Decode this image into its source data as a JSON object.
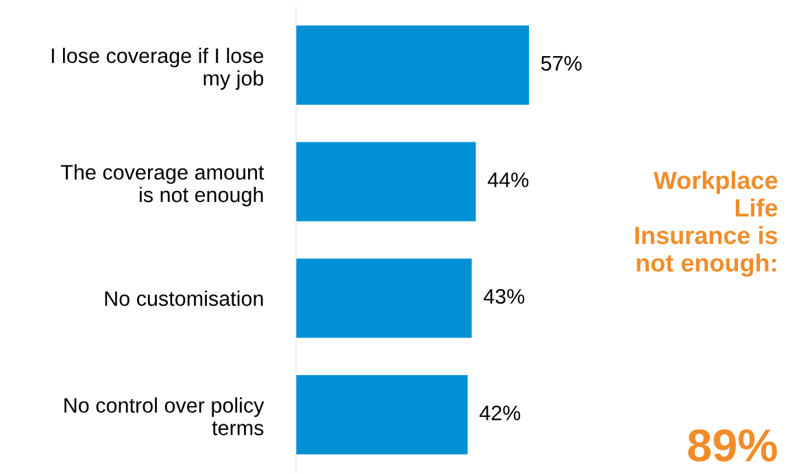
{
  "chart_data": {
    "type": "bar",
    "orientation": "horizontal",
    "categories": [
      "I lose coverage if I lose\nmy job",
      "The coverage amount\nis not enough",
      "No customisation",
      "No control over policy\nterms"
    ],
    "values": [
      57,
      44,
      43,
      42
    ],
    "value_labels": [
      "57%",
      "44%",
      "43%",
      "42%"
    ],
    "color": "#0091d5",
    "tick_labels": "y",
    "grid": false,
    "annotations": [
      "Workplace\nLife\nInsurance is\nnot enough:",
      "89%"
    ]
  }
}
